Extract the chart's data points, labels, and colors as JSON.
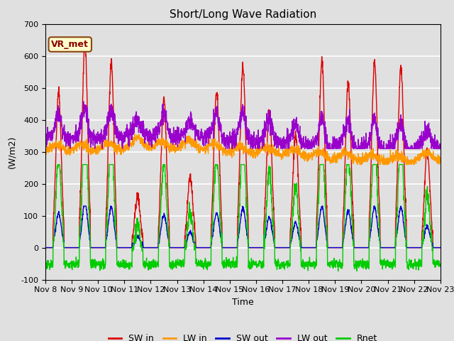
{
  "title": "Short/Long Wave Radiation",
  "xlabel": "Time",
  "ylabel": "(W/m2)",
  "ylim": [
    -100,
    700
  ],
  "xlim": [
    0,
    360
  ],
  "background_color": "#e0e0e0",
  "plot_bg_color": "#e0e0e0",
  "grid_color": "white",
  "annotation_text": "VR_met",
  "annotation_box_color": "#ffffcc",
  "annotation_edge_color": "#8B4513",
  "x_tick_labels": [
    "Nov 8",
    "Nov 9",
    "Nov 10",
    "Nov 11",
    "Nov 12",
    "Nov 13",
    "Nov 14",
    "Nov 15",
    "Nov 16",
    "Nov 17",
    "Nov 18",
    "Nov 19",
    "Nov 20",
    "Nov 21",
    "Nov 22",
    "Nov 23"
  ],
  "legend_labels": [
    "SW in",
    "LW in",
    "SW out",
    "LW out",
    "Rnet"
  ],
  "legend_colors": [
    "#dd0000",
    "#ff9900",
    "#0000cc",
    "#9900cc",
    "#00cc00"
  ],
  "line_widths": [
    1.0,
    1.0,
    1.0,
    1.0,
    1.0
  ],
  "title_fontsize": 11,
  "label_fontsize": 9,
  "tick_fontsize": 8
}
